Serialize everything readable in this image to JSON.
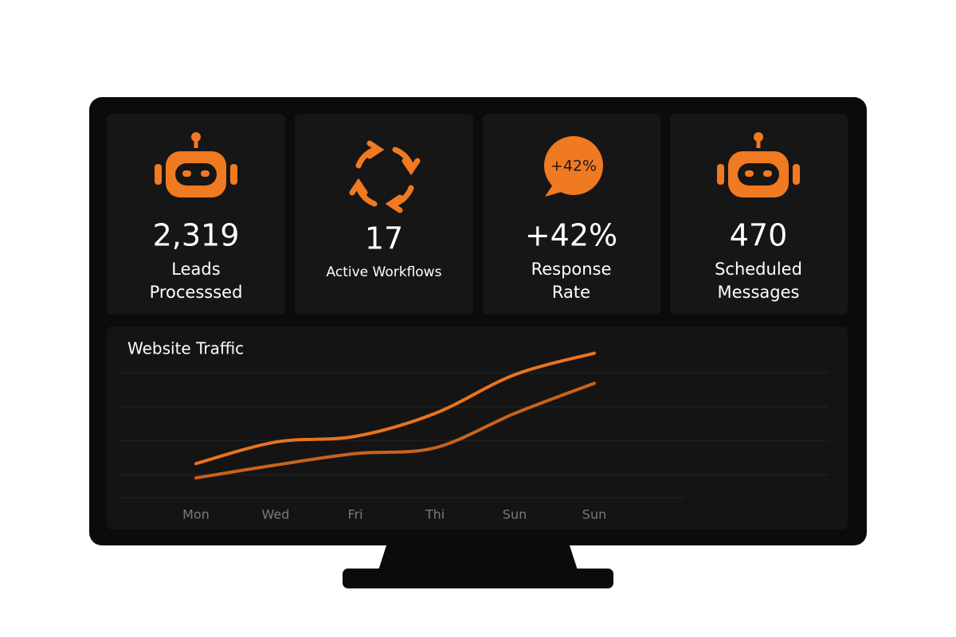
{
  "cards": [
    {
      "value": "2,319",
      "label_lines": [
        "Leads",
        "Processsed"
      ]
    },
    {
      "value": "17",
      "label_lines": [
        "Active Workflows"
      ]
    },
    {
      "value": "+42%",
      "label_lines": [
        "Response",
        "Rate"
      ],
      "badge": "+42%"
    },
    {
      "value": "470",
      "label_lines": [
        "Scheduled",
        "Messages"
      ]
    }
  ],
  "chart_data": {
    "type": "line",
    "title": "Website Traffic",
    "categories": [
      "Mon",
      "Wed",
      "Fri",
      "Thi",
      "Sun",
      "Sun"
    ],
    "ylim": [
      0,
      100
    ],
    "series": [
      {
        "color": "#e8741e",
        "values": [
          21,
          36,
          40,
          56,
          83,
          98
        ]
      },
      {
        "color": "#c9621c",
        "values": [
          11,
          20,
          28,
          32,
          56,
          77
        ]
      }
    ]
  }
}
